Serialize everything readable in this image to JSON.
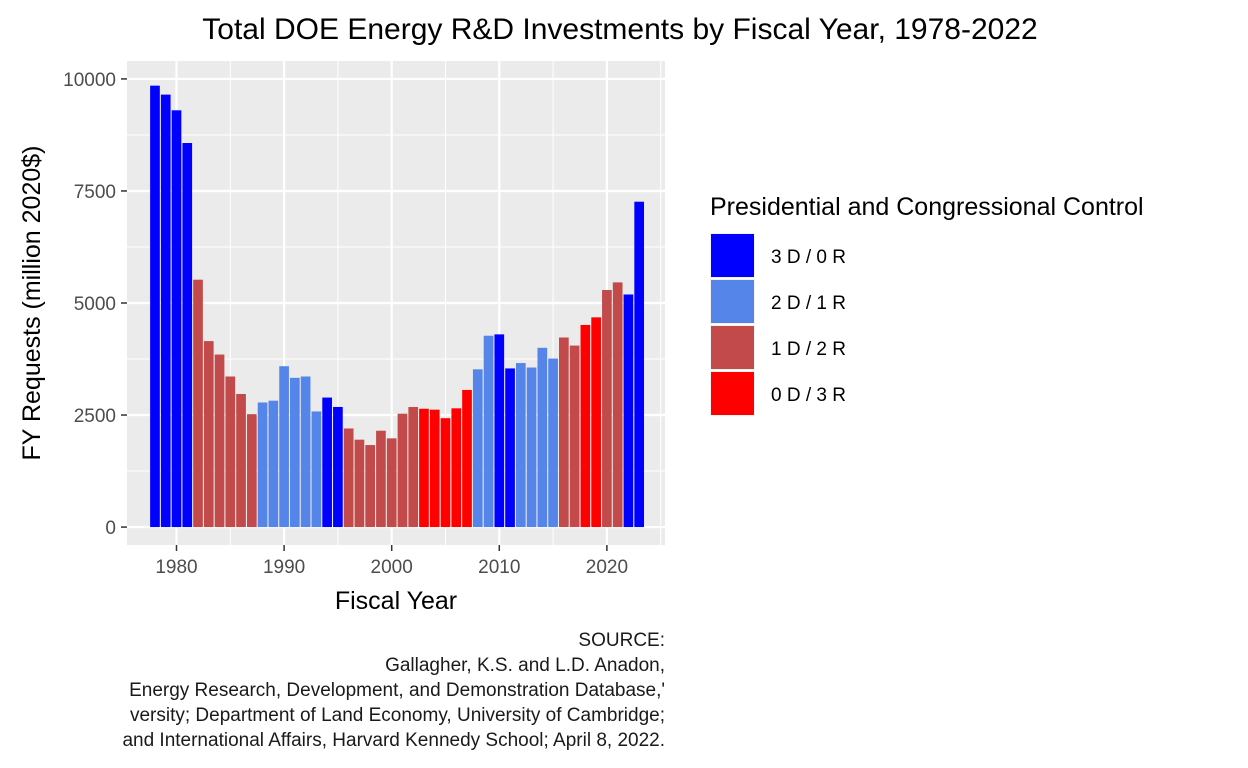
{
  "chart_data": {
    "type": "bar",
    "title": "Total DOE Energy R&D Investments by Fiscal Year, 1978-2022",
    "xlabel": "Fiscal Year",
    "ylabel": "FY Requests (million 2020$)",
    "xlim": [
      1975.4,
      2025.4
    ],
    "ylim": [
      -400,
      10400
    ],
    "x_ticks": [
      1980,
      1990,
      2000,
      2010,
      2020
    ],
    "x_tick_labels": [
      "1980",
      "1990",
      "2000",
      "2010",
      "2020"
    ],
    "y_ticks": [
      0,
      2500,
      5000,
      7500,
      10000
    ],
    "y_tick_labels": [
      "0",
      "2500",
      "5000",
      "7500",
      "10000"
    ],
    "grid": true,
    "legend": {
      "title": "Presidential and Congressional Control",
      "placement": "right",
      "entries": [
        {
          "key": "3D0R",
          "label": "3 D / 0 R",
          "color": "#0000FF"
        },
        {
          "key": "2D1R",
          "label": "2 D / 1 R",
          "color": "#5585E8"
        },
        {
          "key": "1D2R",
          "label": "1 D / 2 R",
          "color": "#C24A4A"
        },
        {
          "key": "0D3R",
          "label": "0 D / 3 R",
          "color": "#FF0000"
        }
      ]
    },
    "bars": [
      {
        "year": 1978,
        "value": 9850,
        "control": "3D0R"
      },
      {
        "year": 1979,
        "value": 9650,
        "control": "3D0R"
      },
      {
        "year": 1980,
        "value": 9300,
        "control": "3D0R"
      },
      {
        "year": 1981,
        "value": 8570,
        "control": "3D0R"
      },
      {
        "year": 1982,
        "value": 5520,
        "control": "1D2R"
      },
      {
        "year": 1983,
        "value": 4150,
        "control": "1D2R"
      },
      {
        "year": 1984,
        "value": 3850,
        "control": "1D2R"
      },
      {
        "year": 1985,
        "value": 3360,
        "control": "1D2R"
      },
      {
        "year": 1986,
        "value": 2970,
        "control": "1D2R"
      },
      {
        "year": 1987,
        "value": 2520,
        "control": "1D2R"
      },
      {
        "year": 1988,
        "value": 2780,
        "control": "2D1R"
      },
      {
        "year": 1989,
        "value": 2820,
        "control": "2D1R"
      },
      {
        "year": 1990,
        "value": 3590,
        "control": "2D1R"
      },
      {
        "year": 1991,
        "value": 3330,
        "control": "2D1R"
      },
      {
        "year": 1992,
        "value": 3360,
        "control": "2D1R"
      },
      {
        "year": 1993,
        "value": 2580,
        "control": "2D1R"
      },
      {
        "year": 1994,
        "value": 2890,
        "control": "3D0R"
      },
      {
        "year": 1995,
        "value": 2680,
        "control": "3D0R"
      },
      {
        "year": 1996,
        "value": 2200,
        "control": "1D2R"
      },
      {
        "year": 1997,
        "value": 1950,
        "control": "1D2R"
      },
      {
        "year": 1998,
        "value": 1830,
        "control": "1D2R"
      },
      {
        "year": 1999,
        "value": 2150,
        "control": "1D2R"
      },
      {
        "year": 2000,
        "value": 1980,
        "control": "1D2R"
      },
      {
        "year": 2001,
        "value": 2530,
        "control": "1D2R"
      },
      {
        "year": 2002,
        "value": 2680,
        "control": "1D2R"
      },
      {
        "year": 2003,
        "value": 2640,
        "control": "0D3R"
      },
      {
        "year": 2004,
        "value": 2620,
        "control": "0D3R"
      },
      {
        "year": 2005,
        "value": 2430,
        "control": "0D3R"
      },
      {
        "year": 2006,
        "value": 2650,
        "control": "0D3R"
      },
      {
        "year": 2007,
        "value": 3060,
        "control": "0D3R"
      },
      {
        "year": 2008,
        "value": 3520,
        "control": "2D1R"
      },
      {
        "year": 2009,
        "value": 4270,
        "control": "2D1R"
      },
      {
        "year": 2010,
        "value": 4300,
        "control": "3D0R"
      },
      {
        "year": 2011,
        "value": 3540,
        "control": "3D0R"
      },
      {
        "year": 2012,
        "value": 3660,
        "control": "2D1R"
      },
      {
        "year": 2013,
        "value": 3560,
        "control": "2D1R"
      },
      {
        "year": 2014,
        "value": 4000,
        "control": "2D1R"
      },
      {
        "year": 2015,
        "value": 3760,
        "control": "2D1R"
      },
      {
        "year": 2016,
        "value": 4230,
        "control": "1D2R"
      },
      {
        "year": 2017,
        "value": 4050,
        "control": "1D2R"
      },
      {
        "year": 2018,
        "value": 4510,
        "control": "0D3R"
      },
      {
        "year": 2019,
        "value": 4680,
        "control": "0D3R"
      },
      {
        "year": 2020,
        "value": 5290,
        "control": "1D2R"
      },
      {
        "year": 2021,
        "value": 5460,
        "control": "1D2R"
      },
      {
        "year": 2022,
        "value": 5190,
        "control": "3D0R"
      },
      {
        "year": 2023,
        "value": 7260,
        "control": "3D0R"
      }
    ]
  },
  "caption": {
    "lines": [
      "SOURCE:",
      "Gallagher, K.S. and L.D. Anadon,",
      "Energy Research, Development, and Demonstration Database,'",
      "versity; Department of Land Economy, University of Cambridge;",
      "and International Affairs, Harvard Kennedy School; April 8, 2022."
    ]
  }
}
